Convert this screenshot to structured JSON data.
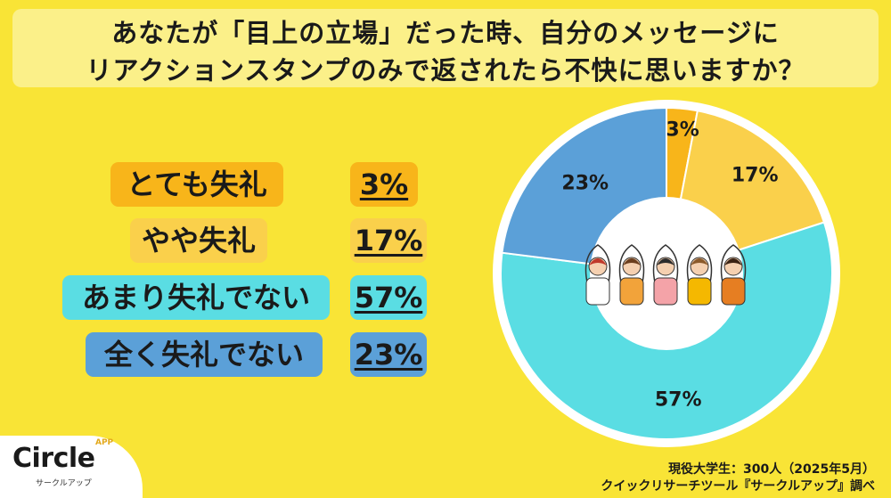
{
  "title": {
    "line1": "あなたが「目上の立場」だった時、自分のメッセージに",
    "line2": "リアクションスタンプのみで返されたら不快に思いますか？"
  },
  "chart_data": {
    "type": "pie",
    "categories": [
      "とても失礼",
      "やや失礼",
      "あまり失礼でない",
      "全く失礼でない"
    ],
    "values": [
      3,
      17,
      57,
      23
    ],
    "labels": [
      "3%",
      "17%",
      "57%",
      "23%"
    ],
    "colors": [
      "#F8B51A",
      "#FAD04B",
      "#5ADDE3",
      "#5BA0D8"
    ]
  },
  "legend": [
    {
      "label": "とても失礼",
      "percent": "3%",
      "pill_color": "#F8B51A",
      "pct_color": "#F8B51A"
    },
    {
      "label": "やや失礼",
      "percent": "17%",
      "pill_color": "#FAD04B",
      "pct_color": "#FAD04B"
    },
    {
      "label": "あまり失礼でない",
      "percent": "57%",
      "pill_color": "#5ADDE3",
      "pct_color": "#5ADDE3"
    },
    {
      "label": "全く失礼でない",
      "percent": "23%",
      "pill_color": "#5BA0D8",
      "pct_color": "#5BA0D8"
    }
  ],
  "source": {
    "line1": "現役大学生：300人（2025年5月）",
    "line2": "クイックリサーチツール『サークルアップ』調べ"
  },
  "logo": {
    "name": "Circle",
    "badge": "APP",
    "sub": "サークルアップ"
  }
}
